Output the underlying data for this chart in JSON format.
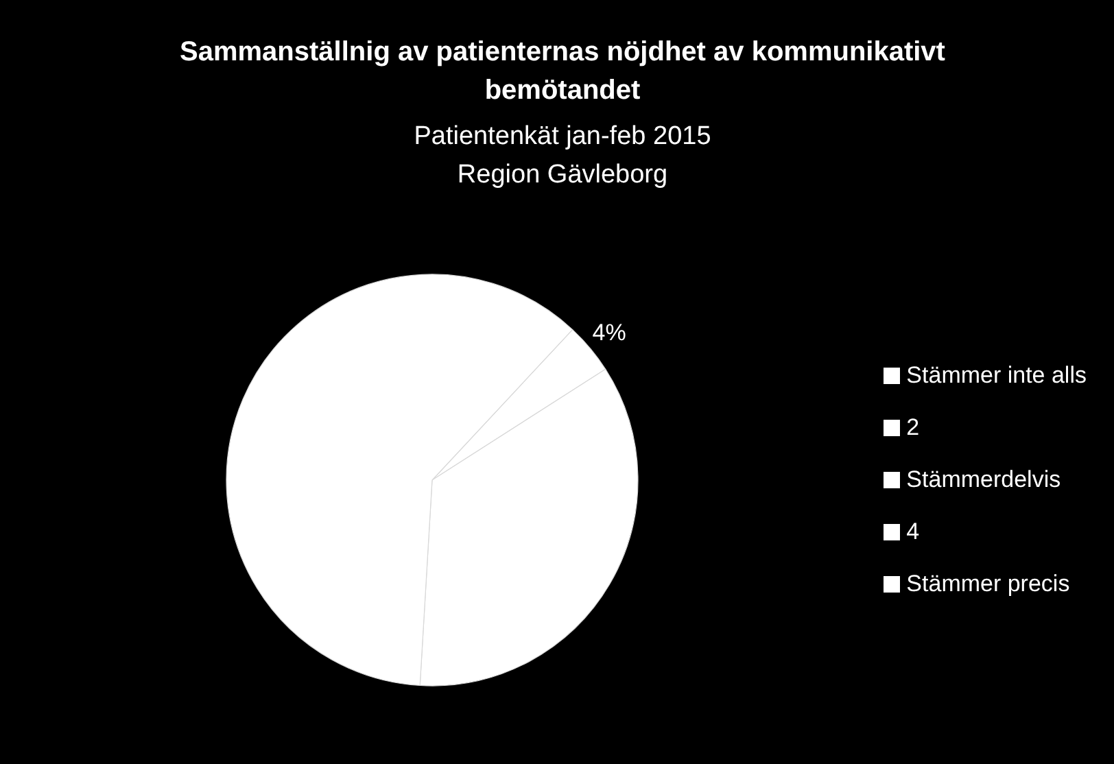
{
  "chart_data": {
    "type": "pie",
    "title": "Sammanställnig av patienternas nöjdhet av kommunikativt bemötandet",
    "subtitle": "Patientenkät jan-feb 2015\nRegion Gävleborg",
    "categories": [
      "Stämmer inte alls",
      "2",
      "Stämmerdelvis",
      "4",
      "Stämmer precis"
    ],
    "values": [
      0,
      0,
      4,
      35,
      61
    ],
    "colors": [
      "#ffffff",
      "#ffffff",
      "#ffffff",
      "#ffffff",
      "#ffffff"
    ],
    "value_labels": [
      null,
      null,
      "4%",
      null,
      null
    ],
    "legend": "right"
  }
}
